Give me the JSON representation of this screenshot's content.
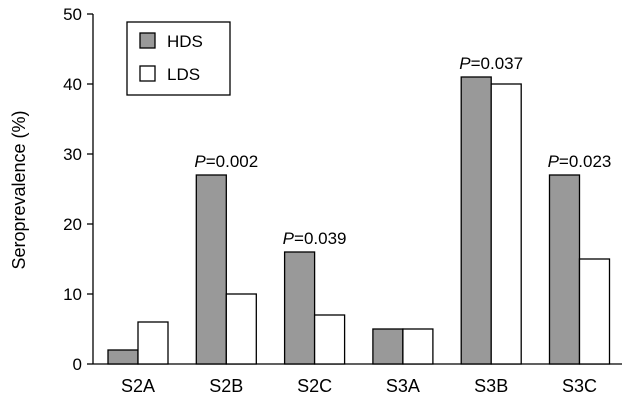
{
  "chart_data": {
    "type": "bar",
    "ylabel": "Seroprevalence (%)",
    "ylim": [
      0,
      50
    ],
    "yticks": [
      0,
      10,
      20,
      30,
      40,
      50
    ],
    "categories": [
      "S2A",
      "S2B",
      "S2C",
      "S3A",
      "S3B",
      "S3C"
    ],
    "series": [
      {
        "name": "HDS",
        "color": "#999999",
        "values": [
          2,
          27,
          16,
          5,
          41,
          27
        ]
      },
      {
        "name": "LDS",
        "color": "#ffffff",
        "values": [
          6,
          10,
          7,
          5,
          40,
          15
        ]
      }
    ],
    "annotations": [
      {
        "category": "S2B",
        "prefix": "P",
        "text": "=0.002"
      },
      {
        "category": "S2C",
        "prefix": "P",
        "text": "=0.039"
      },
      {
        "category": "S3B",
        "prefix": "P",
        "text": "=0.037"
      },
      {
        "category": "S3C",
        "prefix": "P",
        "text": "=0.023"
      }
    ],
    "legend_position": "top-left",
    "grid": false
  }
}
